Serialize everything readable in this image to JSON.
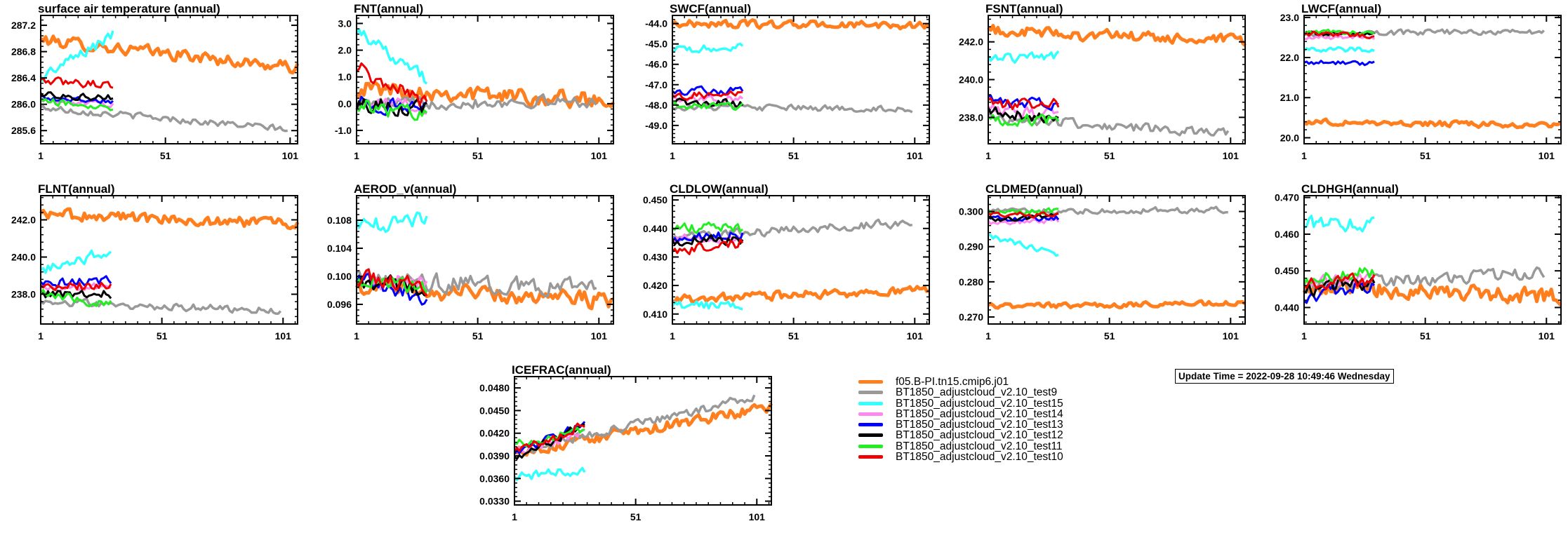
{
  "update_time": "Update Time = 2022-09-28 10:49:46 Wednesday",
  "legend": [
    {
      "name": "f05.B-PI.tn15.cmip6.j01",
      "color": "#ff7f1e"
    },
    {
      "name": "BT1850_adjustcloud_v2.10_test9",
      "color": "#999999"
    },
    {
      "name": "BT1850_adjustcloud_v2.10_test15",
      "color": "#33ffff"
    },
    {
      "name": "BT1850_adjustcloud_v2.10_test14",
      "color": "#ff88ee"
    },
    {
      "name": "BT1850_adjustcloud_v2.10_test13",
      "color": "#0000ff"
    },
    {
      "name": "BT1850_adjustcloud_v2.10_test12",
      "color": "#000000"
    },
    {
      "name": "BT1850_adjustcloud_v2.10_test11",
      "color": "#22ee22"
    },
    {
      "name": "BT1850_adjustcloud_v2.10_test10",
      "color": "#ee0000"
    }
  ],
  "chart_data": [
    {
      "type": "line",
      "title": "surface air temperature (annual)",
      "xlim": [
        1,
        104
      ],
      "ylim": [
        285.4,
        287.35
      ],
      "xticks": [
        1,
        51,
        101
      ],
      "yticks": [
        285.6,
        286.0,
        286.4,
        286.8,
        287.2
      ],
      "ytick_labels": [
        "285.6",
        "286.0",
        "286.4",
        "286.8",
        "287.2"
      ],
      "series": [
        {
          "length": 104,
          "start": 286.98,
          "end": 286.55,
          "noise": 0.09
        },
        {
          "length": 100,
          "start": 285.95,
          "end": 285.62,
          "noise": 0.05
        },
        {
          "length": 30,
          "start": 286.4,
          "end": 287.05,
          "noise": 0.09
        },
        {
          "length": 30,
          "start": 286.05,
          "end": 286.0,
          "noise": 0.05
        },
        {
          "length": 30,
          "start": 286.1,
          "end": 286.05,
          "noise": 0.05
        },
        {
          "length": 30,
          "start": 286.15,
          "end": 286.1,
          "noise": 0.05
        },
        {
          "length": 30,
          "start": 286.05,
          "end": 285.95,
          "noise": 0.05
        },
        {
          "length": 30,
          "start": 286.35,
          "end": 286.3,
          "noise": 0.06
        }
      ]
    },
    {
      "type": "line",
      "title": "FNT(annual)",
      "xlim": [
        1,
        107
      ],
      "ylim": [
        -1.5,
        3.3
      ],
      "xticks": [
        1,
        51,
        101
      ],
      "yticks": [
        -1.0,
        0.0,
        1.0,
        2.0,
        3.0
      ],
      "ytick_labels": [
        "-1.0",
        "0.0",
        "1.0",
        "2.0",
        "3.0"
      ],
      "series": [
        {
          "length": 107,
          "start": 0.6,
          "end": 0.1,
          "noise": 0.3
        },
        {
          "length": 100,
          "start": 0.0,
          "end": 0.1,
          "noise": 0.22
        },
        {
          "length": 30,
          "start": 2.8,
          "end": 0.9,
          "noise": 0.25
        },
        {
          "length": 30,
          "start": 0.0,
          "end": -0.1,
          "noise": 0.25
        },
        {
          "length": 30,
          "start": 0.1,
          "end": -0.3,
          "noise": 0.3
        },
        {
          "length": 30,
          "start": 0.0,
          "end": -0.2,
          "noise": 0.3
        },
        {
          "length": 30,
          "start": 0.0,
          "end": -0.5,
          "noise": 0.3
        },
        {
          "length": 30,
          "start": 1.4,
          "end": 0.0,
          "noise": 0.3
        }
      ]
    },
    {
      "type": "line",
      "title": "SWCF(annual)",
      "xlim": [
        1,
        107
      ],
      "ylim": [
        -49.9,
        -43.6
      ],
      "xticks": [
        1,
        51,
        101
      ],
      "yticks": [
        -49.0,
        -48.0,
        -47.0,
        -46.0,
        -45.0,
        -44.0
      ],
      "ytick_labels": [
        "-49.0",
        "-48.0",
        "-47.0",
        "-46.0",
        "-45.0",
        "-44.0"
      ],
      "series": [
        {
          "length": 107,
          "start": -44.0,
          "end": -44.1,
          "noise": 0.18
        },
        {
          "length": 100,
          "start": -48.1,
          "end": -48.2,
          "noise": 0.15
        },
        {
          "length": 30,
          "start": -45.3,
          "end": -45.2,
          "noise": 0.2
        },
        {
          "length": 30,
          "start": -47.7,
          "end": -47.7,
          "noise": 0.2
        },
        {
          "length": 30,
          "start": -47.3,
          "end": -47.3,
          "noise": 0.2
        },
        {
          "length": 30,
          "start": -47.9,
          "end": -47.9,
          "noise": 0.2
        },
        {
          "length": 30,
          "start": -48.0,
          "end": -48.1,
          "noise": 0.2
        },
        {
          "length": 30,
          "start": -47.5,
          "end": -47.5,
          "noise": 0.2
        }
      ]
    },
    {
      "type": "line",
      "title": "FSNT(annual)",
      "xlim": [
        1,
        107
      ],
      "ylim": [
        236.6,
        243.4
      ],
      "xticks": [
        1,
        51,
        101
      ],
      "yticks": [
        238.0,
        240.0,
        242.0
      ],
      "ytick_labels": [
        "238.0",
        "240.0",
        "242.0"
      ],
      "series": [
        {
          "length": 107,
          "start": 242.6,
          "end": 242.0,
          "noise": 0.3
        },
        {
          "length": 100,
          "start": 238.0,
          "end": 237.1,
          "noise": 0.25
        },
        {
          "length": 30,
          "start": 241.1,
          "end": 241.3,
          "noise": 0.25
        },
        {
          "length": 30,
          "start": 238.4,
          "end": 238.1,
          "noise": 0.3
        },
        {
          "length": 30,
          "start": 238.9,
          "end": 238.6,
          "noise": 0.3
        },
        {
          "length": 30,
          "start": 238.3,
          "end": 238.0,
          "noise": 0.3
        },
        {
          "length": 30,
          "start": 237.8,
          "end": 237.9,
          "noise": 0.3
        },
        {
          "length": 30,
          "start": 238.7,
          "end": 238.7,
          "noise": 0.3
        }
      ]
    },
    {
      "type": "line",
      "title": "LWCF(annual)",
      "xlim": [
        1,
        107
      ],
      "ylim": [
        19.85,
        23.05
      ],
      "xticks": [
        1,
        51,
        101
      ],
      "yticks": [
        20.0,
        21.0,
        22.0,
        23.0
      ],
      "ytick_labels": [
        "20.0",
        "21.0",
        "22.0",
        "23.0"
      ],
      "series": [
        {
          "length": 107,
          "start": 20.4,
          "end": 20.3,
          "noise": 0.07
        },
        {
          "length": 100,
          "start": 22.6,
          "end": 22.65,
          "noise": 0.07
        },
        {
          "length": 30,
          "start": 22.2,
          "end": 22.2,
          "noise": 0.06
        },
        {
          "length": 30,
          "start": 22.5,
          "end": 22.5,
          "noise": 0.06
        },
        {
          "length": 30,
          "start": 21.9,
          "end": 21.85,
          "noise": 0.06
        },
        {
          "length": 30,
          "start": 22.6,
          "end": 22.6,
          "noise": 0.06
        },
        {
          "length": 30,
          "start": 22.65,
          "end": 22.6,
          "noise": 0.06
        },
        {
          "length": 30,
          "start": 22.6,
          "end": 22.55,
          "noise": 0.06
        }
      ]
    },
    {
      "type": "line",
      "title": "FLNT(annual)",
      "xlim": [
        1,
        107
      ],
      "ylim": [
        236.4,
        243.3
      ],
      "xticks": [
        1,
        51,
        101
      ],
      "yticks": [
        238.0,
        240.0,
        242.0
      ],
      "ytick_labels": [
        "238.0",
        "240.0",
        "242.0"
      ],
      "series": [
        {
          "length": 107,
          "start": 242.3,
          "end": 241.8,
          "noise": 0.3
        },
        {
          "length": 100,
          "start": 237.6,
          "end": 237.1,
          "noise": 0.2
        },
        {
          "length": 30,
          "start": 239.3,
          "end": 240.3,
          "noise": 0.3
        },
        {
          "length": 30,
          "start": 238.3,
          "end": 238.4,
          "noise": 0.2
        },
        {
          "length": 30,
          "start": 238.6,
          "end": 238.7,
          "noise": 0.25
        },
        {
          "length": 30,
          "start": 238.0,
          "end": 238.0,
          "noise": 0.25
        },
        {
          "length": 30,
          "start": 238.0,
          "end": 237.5,
          "noise": 0.25
        },
        {
          "length": 30,
          "start": 238.4,
          "end": 238.5,
          "noise": 0.25
        }
      ]
    },
    {
      "type": "line",
      "title": "AEROD_v(annual)",
      "xlim": [
        1,
        107
      ],
      "ylim": [
        0.0932,
        0.1115
      ],
      "xticks": [
        1,
        51,
        101
      ],
      "yticks": [
        0.096,
        0.1,
        0.104,
        0.108
      ],
      "ytick_labels": [
        "0.096",
        "0.100",
        "0.104",
        "0.108"
      ],
      "series": [
        {
          "length": 107,
          "start": 0.0985,
          "end": 0.0965,
          "noise": 0.0012
        },
        {
          "length": 100,
          "start": 0.0995,
          "end": 0.0985,
          "noise": 0.0012
        },
        {
          "length": 30,
          "start": 0.107,
          "end": 0.108,
          "noise": 0.0012
        },
        {
          "length": 30,
          "start": 0.0995,
          "end": 0.099,
          "noise": 0.0012
        },
        {
          "length": 30,
          "start": 0.0995,
          "end": 0.097,
          "noise": 0.0012
        },
        {
          "length": 30,
          "start": 0.0995,
          "end": 0.098,
          "noise": 0.0012
        },
        {
          "length": 30,
          "start": 0.0995,
          "end": 0.0985,
          "noise": 0.0012
        },
        {
          "length": 30,
          "start": 0.1,
          "end": 0.0985,
          "noise": 0.0012
        }
      ]
    },
    {
      "type": "line",
      "title": "CLDLOW(annual)",
      "xlim": [
        1,
        107
      ],
      "ylim": [
        0.4065,
        0.4515
      ],
      "xticks": [
        1,
        51,
        101
      ],
      "yticks": [
        0.41,
        0.42,
        0.43,
        0.44,
        0.45
      ],
      "ytick_labels": [
        "0.410",
        "0.420",
        "0.430",
        "0.440",
        "0.450"
      ],
      "series": [
        {
          "length": 107,
          "start": 0.415,
          "end": 0.4185,
          "noise": 0.0015
        },
        {
          "length": 100,
          "start": 0.437,
          "end": 0.442,
          "noise": 0.0015
        },
        {
          "length": 30,
          "start": 0.413,
          "end": 0.413,
          "noise": 0.0015
        },
        {
          "length": 30,
          "start": 0.436,
          "end": 0.437,
          "noise": 0.0018
        },
        {
          "length": 30,
          "start": 0.436,
          "end": 0.438,
          "noise": 0.0018
        },
        {
          "length": 30,
          "start": 0.436,
          "end": 0.436,
          "noise": 0.0018
        },
        {
          "length": 30,
          "start": 0.44,
          "end": 0.44,
          "noise": 0.0018
        },
        {
          "length": 30,
          "start": 0.432,
          "end": 0.435,
          "noise": 0.0018
        }
      ]
    },
    {
      "type": "line",
      "title": "CLDMED(annual)",
      "xlim": [
        1,
        107
      ],
      "ylim": [
        0.268,
        0.3045
      ],
      "xticks": [
        1,
        51,
        101
      ],
      "yticks": [
        0.27,
        0.28,
        0.29,
        0.3
      ],
      "ytick_labels": [
        "0.270",
        "0.280",
        "0.290",
        "0.300"
      ],
      "series": [
        {
          "length": 107,
          "start": 0.273,
          "end": 0.274,
          "noise": 0.0008
        },
        {
          "length": 100,
          "start": 0.3,
          "end": 0.3005,
          "noise": 0.0008
        },
        {
          "length": 30,
          "start": 0.293,
          "end": 0.288,
          "noise": 0.0008
        },
        {
          "length": 30,
          "start": 0.297,
          "end": 0.297,
          "noise": 0.0008
        },
        {
          "length": 30,
          "start": 0.298,
          "end": 0.298,
          "noise": 0.0008
        },
        {
          "length": 30,
          "start": 0.298,
          "end": 0.2985,
          "noise": 0.0008
        },
        {
          "length": 30,
          "start": 0.3,
          "end": 0.3,
          "noise": 0.0008
        },
        {
          "length": 30,
          "start": 0.299,
          "end": 0.299,
          "noise": 0.0008
        }
      ]
    },
    {
      "type": "line",
      "title": "CLDHGH(annual)",
      "xlim": [
        1,
        107
      ],
      "ylim": [
        0.4355,
        0.4705
      ],
      "xticks": [
        1,
        51,
        101
      ],
      "yticks": [
        0.44,
        0.45,
        0.46,
        0.47
      ],
      "ytick_labels": [
        "0.440",
        "0.450",
        "0.460",
        "0.470"
      ],
      "series": [
        {
          "length": 107,
          "start": 0.4455,
          "end": 0.443,
          "noise": 0.0022
        },
        {
          "length": 100,
          "start": 0.446,
          "end": 0.45,
          "noise": 0.0018
        },
        {
          "length": 30,
          "start": 0.463,
          "end": 0.463,
          "noise": 0.002
        },
        {
          "length": 30,
          "start": 0.447,
          "end": 0.447,
          "noise": 0.002
        },
        {
          "length": 30,
          "start": 0.443,
          "end": 0.446,
          "noise": 0.002
        },
        {
          "length": 30,
          "start": 0.445,
          "end": 0.447,
          "noise": 0.002
        },
        {
          "length": 30,
          "start": 0.447,
          "end": 0.45,
          "noise": 0.002
        },
        {
          "length": 30,
          "start": 0.447,
          "end": 0.447,
          "noise": 0.002
        }
      ]
    },
    {
      "type": "line",
      "title": "ICEFRAC(annual)",
      "xlim": [
        1,
        107
      ],
      "ylim": [
        0.0325,
        0.0495
      ],
      "xticks": [
        1,
        51,
        101
      ],
      "yticks": [
        0.033,
        0.036,
        0.039,
        0.042,
        0.045,
        0.048
      ],
      "ytick_labels": [
        "0.0330",
        "0.0360",
        "0.0390",
        "0.0420",
        "0.0450",
        "0.0480"
      ],
      "series": [
        {
          "length": 107,
          "start": 0.0395,
          "end": 0.0455,
          "noise": 0.0007
        },
        {
          "length": 100,
          "start": 0.0395,
          "end": 0.0468,
          "noise": 0.0006
        },
        {
          "length": 30,
          "start": 0.0362,
          "end": 0.0372,
          "noise": 0.0006
        },
        {
          "length": 30,
          "start": 0.0395,
          "end": 0.042,
          "noise": 0.0006
        },
        {
          "length": 30,
          "start": 0.0392,
          "end": 0.0432,
          "noise": 0.0006
        },
        {
          "length": 30,
          "start": 0.0388,
          "end": 0.043,
          "noise": 0.0006
        },
        {
          "length": 30,
          "start": 0.0405,
          "end": 0.0425,
          "noise": 0.0006
        },
        {
          "length": 30,
          "start": 0.0395,
          "end": 0.043,
          "noise": 0.0006
        }
      ]
    }
  ]
}
